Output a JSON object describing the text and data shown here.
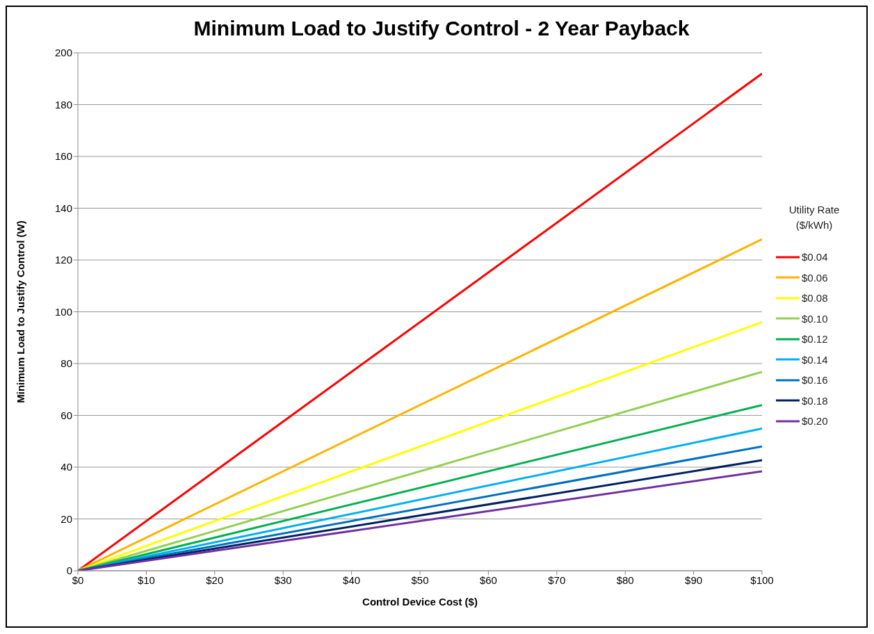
{
  "chart_data": {
    "type": "line",
    "title": "Minimum Load to Justify Control - 2 Year Payback",
    "xlabel": "Control Device Cost ($)",
    "ylabel": "Minimum Load to Justify Control (W)",
    "legend_title": "Utility Rate ($/kWh)",
    "x": [
      0,
      100
    ],
    "series": [
      {
        "name": "$0.04",
        "color": "#ff0000",
        "values": [
          0,
          192
        ]
      },
      {
        "name": "$0.06",
        "color": "#ffb300",
        "values": [
          0,
          128
        ]
      },
      {
        "name": "$0.08",
        "color": "#ffff00",
        "values": [
          0,
          96
        ]
      },
      {
        "name": "$0.10",
        "color": "#92d050",
        "values": [
          0,
          76.8
        ]
      },
      {
        "name": "$0.12",
        "color": "#00b050",
        "values": [
          0,
          64
        ]
      },
      {
        "name": "$0.14",
        "color": "#00b0f0",
        "values": [
          0,
          54.9
        ]
      },
      {
        "name": "$0.16",
        "color": "#0070c0",
        "values": [
          0,
          48
        ]
      },
      {
        "name": "$0.18",
        "color": "#002060",
        "values": [
          0,
          42.7
        ]
      },
      {
        "name": "$0.20",
        "color": "#7030a0",
        "values": [
          0,
          38.4
        ]
      }
    ],
    "xlim": [
      0,
      100
    ],
    "xticks": [
      {
        "value": 0,
        "label": "$0"
      },
      {
        "value": 10,
        "label": "$10"
      },
      {
        "value": 20,
        "label": "$20"
      },
      {
        "value": 30,
        "label": "$30"
      },
      {
        "value": 40,
        "label": "$40"
      },
      {
        "value": 50,
        "label": "$50"
      },
      {
        "value": 60,
        "label": "$60"
      },
      {
        "value": 70,
        "label": "$70"
      },
      {
        "value": 80,
        "label": "$80"
      },
      {
        "value": 90,
        "label": "$90"
      },
      {
        "value": 100,
        "label": "$100"
      }
    ],
    "ylim": [
      0,
      200
    ],
    "yticks": [
      0,
      20,
      40,
      60,
      80,
      100,
      120,
      140,
      160,
      180,
      200
    ],
    "grid": "y",
    "legend": "right",
    "marker": "none",
    "line_style": "solid"
  }
}
